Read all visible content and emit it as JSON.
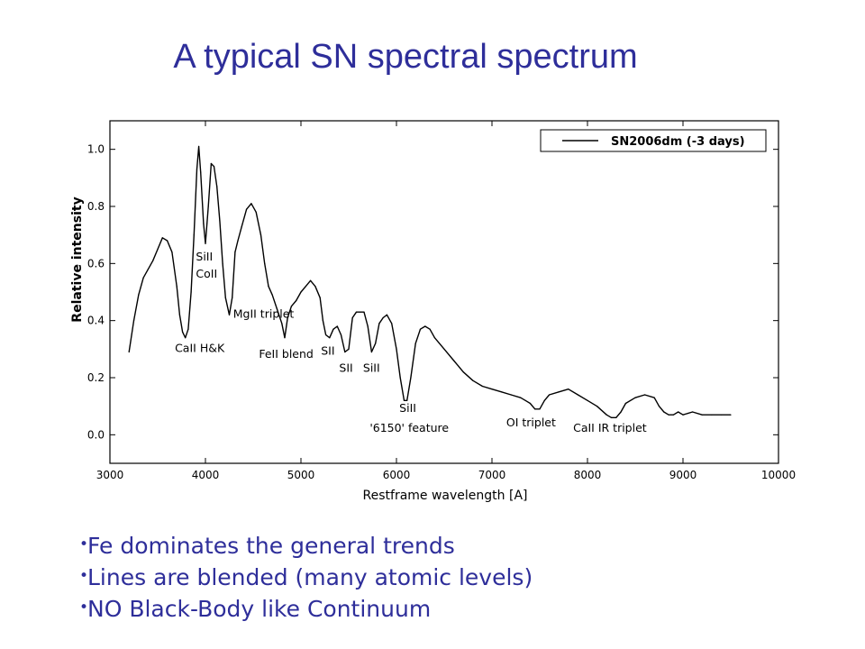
{
  "slide": {
    "title": "A typical SN spectral spectrum",
    "bullets": [
      "Fe  dominates the general trends",
      "Lines are blended (many atomic levels)",
      "NO Black-Body like Continuum"
    ]
  },
  "chart_data": {
    "type": "line",
    "title": "",
    "xlabel": "Restframe wavelength [A]",
    "ylabel": "Relative intensity",
    "xlim": [
      3000,
      10000
    ],
    "ylim": [
      -0.1,
      1.1
    ],
    "xticks": [
      3000,
      4000,
      5000,
      6000,
      7000,
      8000,
      9000,
      10000
    ],
    "yticks": [
      0.0,
      0.2,
      0.4,
      0.6,
      0.8,
      1.0
    ],
    "ytick_labels": [
      "0.0",
      "0.2",
      "0.4",
      "0.6",
      "0.8",
      "1.0"
    ],
    "grid": false,
    "legend_position": "top-right",
    "line_color": "#000000",
    "series": [
      {
        "name": "SN2006dm (-3 days)",
        "x": [
          3200,
          3250,
          3300,
          3350,
          3400,
          3450,
          3500,
          3550,
          3600,
          3650,
          3700,
          3730,
          3760,
          3790,
          3820,
          3850,
          3880,
          3910,
          3930,
          3950,
          3980,
          4000,
          4030,
          4060,
          4090,
          4120,
          4150,
          4180,
          4210,
          4250,
          4280,
          4310,
          4340,
          4380,
          4430,
          4480,
          4530,
          4580,
          4620,
          4660,
          4700,
          4750,
          4800,
          4830,
          4860,
          4900,
          4950,
          5000,
          5050,
          5100,
          5150,
          5200,
          5230,
          5260,
          5300,
          5340,
          5380,
          5420,
          5460,
          5500,
          5540,
          5580,
          5620,
          5660,
          5700,
          5740,
          5780,
          5820,
          5860,
          5900,
          5950,
          6000,
          6040,
          6080,
          6110,
          6150,
          6200,
          6250,
          6300,
          6350,
          6400,
          6500,
          6600,
          6700,
          6800,
          6900,
          7000,
          7100,
          7200,
          7300,
          7350,
          7400,
          7450,
          7500,
          7550,
          7600,
          7700,
          7800,
          7900,
          8000,
          8100,
          8200,
          8250,
          8300,
          8350,
          8400,
          8500,
          8600,
          8700,
          8750,
          8800,
          8850,
          8900,
          8950,
          9000,
          9100,
          9200,
          9300,
          9400,
          9500
        ],
        "y": [
          0.29,
          0.4,
          0.49,
          0.55,
          0.58,
          0.61,
          0.65,
          0.69,
          0.68,
          0.64,
          0.52,
          0.42,
          0.36,
          0.34,
          0.37,
          0.5,
          0.7,
          0.93,
          1.01,
          0.92,
          0.74,
          0.67,
          0.8,
          0.95,
          0.94,
          0.87,
          0.75,
          0.6,
          0.48,
          0.42,
          0.48,
          0.64,
          0.68,
          0.73,
          0.79,
          0.81,
          0.78,
          0.7,
          0.6,
          0.52,
          0.49,
          0.44,
          0.39,
          0.34,
          0.41,
          0.45,
          0.47,
          0.5,
          0.52,
          0.54,
          0.52,
          0.48,
          0.4,
          0.35,
          0.34,
          0.37,
          0.38,
          0.35,
          0.29,
          0.3,
          0.41,
          0.43,
          0.43,
          0.43,
          0.38,
          0.29,
          0.32,
          0.39,
          0.41,
          0.42,
          0.39,
          0.3,
          0.2,
          0.12,
          0.12,
          0.2,
          0.32,
          0.37,
          0.38,
          0.37,
          0.34,
          0.3,
          0.26,
          0.22,
          0.19,
          0.17,
          0.16,
          0.15,
          0.14,
          0.13,
          0.12,
          0.11,
          0.09,
          0.09,
          0.12,
          0.14,
          0.15,
          0.16,
          0.14,
          0.12,
          0.1,
          0.07,
          0.06,
          0.06,
          0.08,
          0.11,
          0.13,
          0.14,
          0.13,
          0.1,
          0.08,
          0.07,
          0.07,
          0.08,
          0.07,
          0.08,
          0.07,
          0.07,
          0.07,
          0.07
        ]
      }
    ],
    "annotations": [
      {
        "text": "CaII H&K",
        "x": 3680,
        "y": 0.29
      },
      {
        "text": "SiII",
        "x": 3900,
        "y": 0.61
      },
      {
        "text": "CoII",
        "x": 3900,
        "y": 0.55
      },
      {
        "text": "MgII triplet",
        "x": 4290,
        "y": 0.41
      },
      {
        "text": "FeII blend",
        "x": 4560,
        "y": 0.27
      },
      {
        "text": "SII",
        "x": 5210,
        "y": 0.28
      },
      {
        "text": "SII",
        "x": 5400,
        "y": 0.22
      },
      {
        "text": "SiII",
        "x": 5650,
        "y": 0.22
      },
      {
        "text": "SiII",
        "x": 6030,
        "y": 0.08
      },
      {
        "text": "'6150' feature",
        "x": 5720,
        "y": 0.01
      },
      {
        "text": "OI triplet",
        "x": 7150,
        "y": 0.03
      },
      {
        "text": "CaII IR triplet",
        "x": 7850,
        "y": 0.01
      }
    ]
  }
}
